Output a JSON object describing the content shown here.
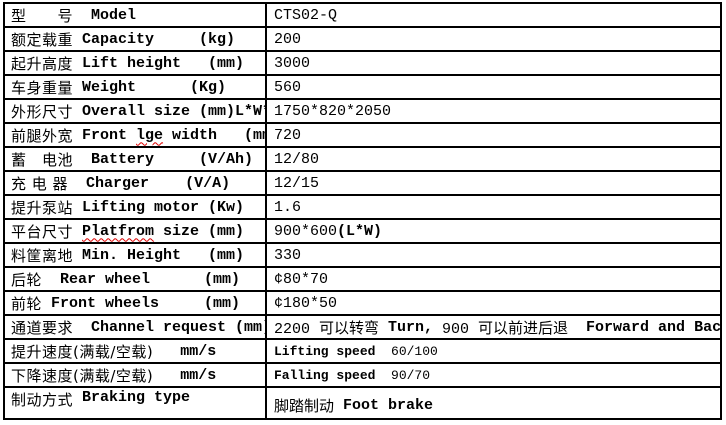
{
  "colors": {
    "border": "#000000",
    "text": "#000000",
    "spellcheck_squiggle": "#dd0000",
    "background": "#ffffff"
  },
  "table": {
    "rows": [
      {
        "cn": "型　　号",
        "en_pre": "  Model",
        "en_sq": "",
        "en_post": "",
        "val_pre": "CTS02-Q",
        "val_b1": "",
        "val_mid": "",
        "val_b2": ""
      },
      {
        "cn": "额定载重",
        "en_pre": " Capacity     (kg)",
        "en_sq": "",
        "en_post": "",
        "val_pre": "200",
        "val_b1": "",
        "val_mid": "",
        "val_b2": ""
      },
      {
        "cn": "起升高度",
        "en_pre": " Lift height   (mm)",
        "en_sq": "",
        "en_post": "",
        "val_pre": "3000",
        "val_b1": "",
        "val_mid": "",
        "val_b2": ""
      },
      {
        "cn": "车身重量",
        "en_pre": " Weight      (Kg)",
        "en_sq": "",
        "en_post": "",
        "val_pre": "560",
        "val_b1": "",
        "val_mid": "",
        "val_b2": ""
      },
      {
        "cn": "外形尺寸",
        "en_pre": " Overall size (mm)L*W*H",
        "en_sq": "",
        "en_post": "",
        "val_pre": "1750*820*2050",
        "val_b1": "",
        "val_mid": "",
        "val_b2": ""
      },
      {
        "cn": "前腿外宽",
        "en_pre": " Front ",
        "en_sq": "lge",
        "en_post": " width   (mm)",
        "val_pre": "720",
        "val_b1": "",
        "val_mid": "",
        "val_b2": ""
      },
      {
        "cn": "蓄　电池",
        "en_pre": "  Battery     (V/Ah)",
        "en_sq": "",
        "en_post": "",
        "val_pre": "12/80",
        "val_b1": "",
        "val_mid": "",
        "val_b2": ""
      },
      {
        "cn": "充 电 器",
        "en_pre": "  Charger    (V/A)",
        "en_sq": "",
        "en_post": "",
        "val_pre": "12/15",
        "val_b1": "",
        "val_mid": "",
        "val_b2": ""
      },
      {
        "cn": "提升泵站",
        "en_pre": " Lifting motor (Kw)",
        "en_sq": "",
        "en_post": "",
        "val_pre": "1.6",
        "val_b1": "",
        "val_mid": "",
        "val_b2": ""
      },
      {
        "cn": "平台尺寸",
        "en_pre": " ",
        "en_sq": "Platfrom",
        "en_post": " size (mm)",
        "val_pre": "900*600",
        "val_b1": "(L*W)",
        "val_mid": "",
        "val_b2": ""
      },
      {
        "cn": "料筐离地",
        "en_pre": " Min. Height   (mm)",
        "en_sq": "",
        "en_post": "",
        "val_pre": "330",
        "val_b1": "",
        "val_mid": "",
        "val_b2": ""
      },
      {
        "cn": "后轮",
        "en_pre": "  Rear wheel      (mm)",
        "en_sq": "",
        "en_post": "",
        "val_pre": "¢80*70",
        "val_b1": "",
        "val_mid": "",
        "val_b2": ""
      },
      {
        "cn": "前轮",
        "en_pre": " Front wheels     (mm)",
        "en_sq": "",
        "en_post": "",
        "val_pre": "¢180*50",
        "val_b1": "",
        "val_mid": "",
        "val_b2": ""
      },
      {
        "cn": "通道要求",
        "en_pre": "  Channel request (mm)",
        "en_sq": "",
        "en_post": "",
        "val_pre": "2200 可以转弯 ",
        "val_b1": "Turn,",
        "val_mid": " 900 可以前进后退  ",
        "val_b2": "Forward and Backward"
      },
      {
        "cn": "提升速度(满载/空载)",
        "en_pre": "   mm/s",
        "en_sq": "",
        "en_post": "",
        "val_pre": "",
        "val_b1": "Lifting speed",
        "val_mid": "  60/100",
        "val_b2": ""
      },
      {
        "cn": "下降速度(满载/空载)",
        "en_pre": "   mm/s",
        "en_sq": "",
        "en_post": "",
        "val_pre": "",
        "val_b1": "Falling speed",
        "val_mid": "  90/70",
        "val_b2": ""
      },
      {
        "cn": "制动方式",
        "en_pre": " Braking type",
        "en_sq": "",
        "en_post": "",
        "val_pre": "脚踏制动 ",
        "val_b1": "Foot brake",
        "val_mid": "",
        "val_b2": ""
      }
    ]
  }
}
